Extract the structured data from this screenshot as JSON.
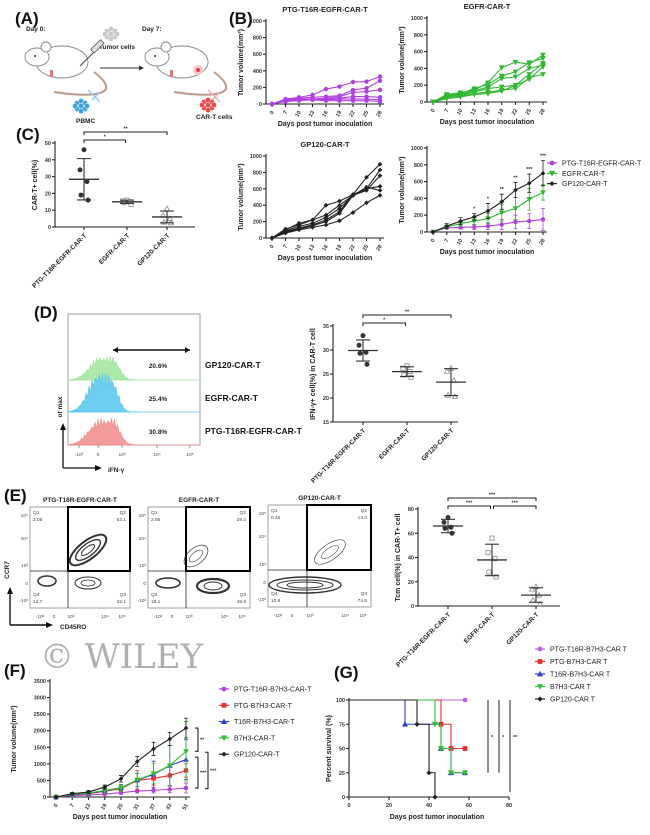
{
  "panel_labels": {
    "A": "(A)",
    "B": "(B)",
    "C": "(C)",
    "D": "(D)",
    "E": "(E)",
    "F": "(F)",
    "G": "(G)"
  },
  "schematic": {
    "day0": "Day 0:",
    "day7": "Day 7:",
    "tumor_cells": "Tumor cells",
    "pbmc": "PBMC",
    "car_t_cells": "CAR-T cells"
  },
  "histogram": {
    "ylabel": "of max",
    "xlabel": "iFN-γ",
    "xticks": [
      "-10³",
      "0",
      "10³",
      "10⁴",
      "10⁵"
    ],
    "rows": [
      {
        "label": "GP120-CAR-T",
        "percent": "20.6%",
        "color": "#9fe39a"
      },
      {
        "label": "EGFR-CAR-T",
        "percent": "25.4%",
        "color": "#55c6ec"
      },
      {
        "label": "PTG-T16R-EGFR-CAR-T",
        "percent": "30.8%",
        "color": "#f28a8a"
      }
    ]
  },
  "flow": {
    "xlabel": "CD45RO",
    "ylabel": "CCR7",
    "ticks": [
      "-10³",
      "0",
      "10³",
      "10⁴",
      "10⁵"
    ],
    "plots": [
      {
        "title": "PTG-T16R-EGFR-CAR-T",
        "quadrants": [
          {
            "name": "Q1",
            "value": "2.08"
          },
          {
            "name": "Q2",
            "value": "63.1"
          },
          {
            "name": "Q3",
            "value": "22.1"
          },
          {
            "name": "Q4",
            "value": "12.7"
          }
        ]
      },
      {
        "title": "EGFR-CAR-T",
        "quadrants": [
          {
            "name": "Q1",
            "value": "2.85"
          },
          {
            "name": "Q2",
            "value": "28.2"
          },
          {
            "name": "Q3",
            "value": "49.9"
          },
          {
            "name": "Q4",
            "value": "19.1"
          }
        ]
      },
      {
        "title": "GP120-CAR-T",
        "quadrants": [
          {
            "name": "Q1",
            "value": "0.45"
          },
          {
            "name": "Q2",
            "value": "14.0"
          },
          {
            "name": "Q3",
            "value": "74.6"
          },
          {
            "name": "Q4",
            "value": "10.9"
          }
        ]
      }
    ]
  },
  "watermark": "© WILEY",
  "chart_data": [
    {
      "type": "line",
      "title": "PTG-T16R-EGFR-CAR-T",
      "xlabel": "Days post tumor inoculation",
      "ylabel": "Tumor volume(mm³)",
      "x": [
        0,
        7,
        10,
        13,
        16,
        19,
        22,
        25,
        28
      ],
      "ylim": [
        0,
        1000
      ],
      "yticks": [
        0,
        200,
        400,
        600,
        800,
        1000
      ],
      "color": "#b040e0",
      "marker": "circle",
      "series": [
        {
          "values": [
            0,
            60,
            80,
            110,
            180,
            210,
            265,
            270,
            330
          ]
        },
        {
          "values": [
            0,
            50,
            70,
            80,
            90,
            100,
            170,
            190,
            280
          ]
        },
        {
          "values": [
            0,
            40,
            50,
            60,
            70,
            90,
            140,
            150,
            170
          ]
        },
        {
          "values": [
            0,
            50,
            60,
            60,
            60,
            70,
            90,
            90,
            80
          ]
        },
        {
          "values": [
            0,
            30,
            40,
            50,
            50,
            60,
            60,
            60,
            50
          ]
        },
        {
          "values": [
            0,
            40,
            50,
            50,
            40,
            40,
            40,
            40,
            30
          ]
        }
      ]
    },
    {
      "type": "line",
      "title": "EGFR-CAR-T",
      "xlabel": "Days post tumor inoculation",
      "ylabel": "Tumor volume(mm³)",
      "x": [
        0,
        7,
        10,
        13,
        16,
        19,
        22,
        25,
        28
      ],
      "ylim": [
        0,
        1000
      ],
      "yticks": [
        0,
        200,
        400,
        600,
        800,
        1000
      ],
      "color": "#30b830",
      "marker": "tri-down",
      "series": [
        {
          "values": [
            0,
            90,
            110,
            140,
            230,
            410,
            475,
            450,
            560
          ]
        },
        {
          "values": [
            0,
            80,
            100,
            160,
            210,
            310,
            360,
            470,
            520
          ]
        },
        {
          "values": [
            0,
            60,
            90,
            130,
            180,
            280,
            300,
            400,
            440
          ]
        },
        {
          "values": [
            0,
            70,
            80,
            120,
            160,
            180,
            200,
            330,
            460
          ]
        },
        {
          "values": [
            0,
            50,
            70,
            100,
            120,
            140,
            160,
            290,
            330
          ]
        },
        {
          "values": [
            0,
            40,
            60,
            90,
            100,
            130,
            200,
            270,
            420
          ]
        }
      ]
    },
    {
      "type": "line",
      "title": "GP120-CAR-T",
      "xlabel": "Days post tumor inoculation",
      "ylabel": "Tumor volume(mm³)",
      "x": [
        0,
        7,
        10,
        13,
        16,
        19,
        22,
        25,
        28
      ],
      "ylim": [
        0,
        1000
      ],
      "yticks": [
        0,
        200,
        400,
        600,
        800,
        1000
      ],
      "color": "#222222",
      "marker": "diamond",
      "series": [
        {
          "values": [
            0,
            110,
            160,
            220,
            400,
            450,
            530,
            740,
            900
          ]
        },
        {
          "values": [
            0,
            100,
            180,
            220,
            280,
            400,
            520,
            600,
            830
          ]
        },
        {
          "values": [
            0,
            90,
            140,
            180,
            250,
            360,
            520,
            580,
            760
          ]
        },
        {
          "values": [
            0,
            80,
            120,
            160,
            220,
            320,
            530,
            600,
            630
          ]
        },
        {
          "values": [
            0,
            70,
            110,
            150,
            200,
            300,
            520,
            620,
            580
          ]
        },
        {
          "values": [
            0,
            60,
            100,
            130,
            160,
            210,
            310,
            430,
            520
          ]
        }
      ]
    },
    {
      "type": "line",
      "xlabel": "Days post tumor inoculation",
      "ylabel": "Tumor volume(mm³)",
      "x": [
        0,
        7,
        10,
        13,
        16,
        19,
        22,
        25,
        28
      ],
      "ylim": [
        0,
        1000
      ],
      "yticks": [
        0,
        200,
        400,
        600,
        800,
        1000
      ],
      "legend": "right",
      "series": [
        {
          "name": "PTG-T16R-EGFR-CAR-T",
          "color": "#b040e0",
          "marker": "circle",
          "values": [
            0,
            50,
            55,
            60,
            70,
            90,
            120,
            130,
            150
          ],
          "errors": [
            0,
            10,
            20,
            30,
            40,
            60,
            80,
            90,
            130
          ]
        },
        {
          "name": "EGFR-CAR-T",
          "color": "#30b830",
          "marker": "tri-down",
          "values": [
            0,
            60,
            100,
            130,
            160,
            230,
            280,
            390,
            470
          ],
          "errors": [
            0,
            20,
            30,
            40,
            60,
            100,
            130,
            130,
            90
          ]
        },
        {
          "name": "GP120-CAR-T",
          "color": "#222222",
          "marker": "diamond",
          "values": [
            0,
            70,
            130,
            180,
            250,
            360,
            500,
            580,
            700
          ],
          "errors": [
            0,
            30,
            40,
            40,
            90,
            90,
            90,
            110,
            150
          ]
        }
      ],
      "annotations": [
        {
          "x": 13,
          "text": "*"
        },
        {
          "x": 16,
          "text": "*"
        },
        {
          "x": 19,
          "text": "**"
        },
        {
          "x": 22,
          "text": "**"
        },
        {
          "x": 25,
          "text": "***"
        },
        {
          "x": 28,
          "text": "***"
        }
      ]
    },
    {
      "type": "scatter",
      "ylabel": "CAR-T+ cell(%)",
      "categories": [
        "PTG-T16R-EGFR-CAR-T",
        "EGFR-CAR-T",
        "GP120-CAR-T"
      ],
      "ylim": [
        0,
        50
      ],
      "yticks": [
        0,
        10,
        20,
        30,
        40,
        50
      ],
      "groups": [
        {
          "points": [
            46,
            34,
            27,
            19,
            16
          ],
          "mean": 28.4,
          "sd": 12.3,
          "marker": "circle",
          "filled": true
        },
        {
          "points": [
            16,
            15.5,
            15,
            14.5,
            13.5
          ],
          "mean": 15,
          "sd": 1,
          "marker": "square",
          "filled": false
        },
        {
          "points": [
            11,
            7,
            5,
            3,
            2.5
          ],
          "mean": 6,
          "sd": 3.5,
          "marker": "tri-up",
          "filled": false
        }
      ],
      "significance": [
        {
          "from": 0,
          "to": 2,
          "label": "**"
        },
        {
          "from": 0,
          "to": 1,
          "label": "*"
        }
      ]
    },
    {
      "type": "scatter",
      "ylabel": "IFN-γ+ cell(%) in CAR-T cell",
      "categories": [
        "PTG-T16R-EGFR-CAR-T",
        "EGFR-CAR-T",
        "GP120-CAR-T"
      ],
      "ylim": [
        15,
        35
      ],
      "yticks": [
        15,
        20,
        25,
        30,
        35
      ],
      "groups": [
        {
          "points": [
            33,
            31,
            29.5,
            29.3,
            27
          ],
          "mean": 29.9,
          "sd": 2.2,
          "marker": "circle",
          "filled": true
        },
        {
          "points": [
            26.7,
            26.2,
            25.5,
            24.8,
            24.3
          ],
          "mean": 25.5,
          "sd": 1,
          "marker": "square",
          "filled": false
        },
        {
          "points": [
            26.2,
            25.6,
            23.7,
            20.6,
            20.3
          ],
          "mean": 23.3,
          "sd": 2.8,
          "marker": "tri-up",
          "filled": false
        }
      ],
      "significance": [
        {
          "from": 0,
          "to": 2,
          "label": "**"
        },
        {
          "from": 0,
          "to": 1,
          "label": "*"
        }
      ]
    },
    {
      "type": "scatter",
      "ylabel": "Tcm cell(%) in CAR-T+ cell",
      "categories": [
        "PTG-T16R-EGFR-CAR-T",
        "EGFR-CAR-T",
        "GP120-CAR-T"
      ],
      "ylim": [
        0,
        80
      ],
      "yticks": [
        0,
        20,
        40,
        60,
        80
      ],
      "groups": [
        {
          "points": [
            73,
            69,
            65,
            64,
            60
          ],
          "mean": 66,
          "sd": 5.5,
          "marker": "circle",
          "filled": true
        },
        {
          "points": [
            56,
            44,
            39,
            28,
            24
          ],
          "mean": 38,
          "sd": 13,
          "marker": "square",
          "filled": false
        },
        {
          "points": [
            16,
            14,
            9,
            5,
            2
          ],
          "mean": 9,
          "sd": 6,
          "marker": "tri-up",
          "filled": false
        }
      ],
      "significance": [
        {
          "from": 0,
          "to": 2,
          "label": "***"
        },
        {
          "from": 0,
          "to": 1,
          "label": "***"
        },
        {
          "from": 1,
          "to": 2,
          "label": "***"
        }
      ]
    },
    {
      "type": "line",
      "xlabel": "Days post tumor inoculation",
      "ylabel": "Tumor volume(mm³)",
      "x": [
        0,
        7,
        13,
        19,
        25,
        31,
        37,
        43,
        51
      ],
      "ylim": [
        0,
        3500
      ],
      "yticks": [
        0,
        500,
        1000,
        1500,
        2000,
        2500,
        3000,
        3500
      ],
      "legend": "right",
      "series": [
        {
          "name": "PTG-T16R-B7H3-CAR-T",
          "color": "#b040e0",
          "marker": "circle",
          "values": [
            0,
            40,
            60,
            90,
            130,
            180,
            200,
            230,
            270
          ],
          "errors": [
            10,
            20,
            30,
            40,
            50,
            60,
            80,
            100,
            150
          ]
        },
        {
          "name": "PTG-B7H3-CAR-T",
          "color": "#e03030",
          "marker": "square",
          "values": [
            0,
            60,
            100,
            170,
            250,
            500,
            560,
            650,
            800
          ],
          "errors": [
            10,
            20,
            30,
            60,
            80,
            300,
            200,
            300,
            200
          ]
        },
        {
          "name": "T16R-B7H3-CAR-T",
          "color": "#3040d0",
          "marker": "tri-up",
          "values": [
            0,
            70,
            110,
            190,
            280,
            510,
            680,
            950,
            1130
          ],
          "errors": [
            10,
            20,
            30,
            60,
            100,
            200,
            400,
            600,
            600
          ]
        },
        {
          "name": "B7H3-CAR-T",
          "color": "#30c030",
          "marker": "tri-down",
          "values": [
            0,
            80,
            120,
            200,
            270,
            520,
            700,
            950,
            1380
          ],
          "errors": [
            10,
            20,
            40,
            80,
            100,
            200,
            300,
            600,
            900
          ]
        },
        {
          "name": "GP120-CAR-T",
          "color": "#222222",
          "marker": "diamond",
          "values": [
            0,
            100,
            150,
            300,
            550,
            1070,
            1450,
            1750,
            2080
          ],
          "errors": [
            20,
            30,
            40,
            60,
            100,
            150,
            200,
            200,
            300
          ]
        }
      ],
      "significance": [
        {
          "from": 2080,
          "to": 1380,
          "label": "**"
        },
        {
          "from": 1200,
          "to": 270,
          "label": "***"
        },
        {
          "from": 1350,
          "to": 250,
          "label": "***"
        }
      ]
    },
    {
      "type": "line",
      "subtype": "survival",
      "xlabel": "Days post tumor inoculation",
      "ylabel": "Percent survival (%)",
      "xlim": [
        0,
        80
      ],
      "xticks": [
        0,
        20,
        40,
        60,
        80
      ],
      "ylim": [
        0,
        100
      ],
      "yticks": [
        0,
        25,
        50,
        75,
        100
      ],
      "legend": "top-right",
      "series": [
        {
          "name": "PTG-T16R-B7H3-CAR T",
          "color": "#c060e0",
          "marker": "circle",
          "times": [
            0,
            58
          ],
          "survival": [
            100,
            100
          ]
        },
        {
          "name": "PTG-B7H3-CAR T",
          "color": "#e03030",
          "marker": "square",
          "times": [
            0,
            46,
            51,
            58
          ],
          "survival": [
            100,
            75,
            50,
            50
          ]
        },
        {
          "name": "T16R-B7H3-CAR T",
          "color": "#3040d0",
          "marker": "tri-up",
          "times": [
            0,
            28,
            46,
            51,
            58
          ],
          "survival": [
            100,
            75,
            50,
            25,
            25
          ]
        },
        {
          "name": "B7H3-CAR T",
          "color": "#30c030",
          "marker": "tri-down",
          "times": [
            0,
            43,
            46,
            51,
            58
          ],
          "survival": [
            100,
            75,
            50,
            25,
            25
          ]
        },
        {
          "name": "GP120-CAR T",
          "color": "#222222",
          "marker": "diamond",
          "times": [
            0,
            34,
            40,
            43
          ],
          "survival": [
            100,
            75,
            25,
            0
          ]
        }
      ],
      "significance": [
        {
          "x": 69.5,
          "from": 100,
          "to": 25,
          "label": "*"
        },
        {
          "x": 75,
          "from": 100,
          "to": 25,
          "label": "*"
        },
        {
          "x": 80.5,
          "from": 100,
          "to": 5,
          "label": "**"
        }
      ]
    }
  ]
}
